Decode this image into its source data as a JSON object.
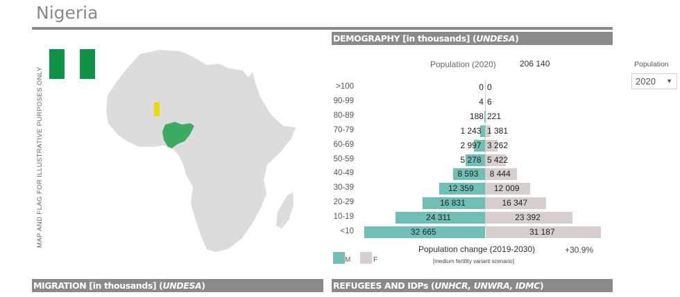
{
  "header": {
    "title": "Nigeria"
  },
  "map_panel": {
    "disclaimer": "MAP AND FLAG FOR ILLUSTRATIVE PURPOSES ONLY",
    "flag_colors": [
      "#0e9446",
      "#ffffff",
      "#0e9446"
    ],
    "map_land_color": "#dcdcdc",
    "highlight_color": "#3bab62",
    "marker_color": "#e3de00"
  },
  "sections": {
    "demography": {
      "prefix": "DEMOGRAPHY [in thousands] (",
      "source": "UNDESA",
      "suffix": ")"
    },
    "migration": {
      "prefix": "MIGRATION [in thousands] (",
      "source": "UNDESA",
      "suffix": ")"
    },
    "refugees": {
      "prefix": "REFUGEES AND IDPs (",
      "source": "UNHCR, UNWRA, IDMC",
      "suffix": ")"
    }
  },
  "population": {
    "label": "Population (2020)",
    "value": "206 140"
  },
  "selector": {
    "label": "Population",
    "value": "2020"
  },
  "legend": {
    "m": "M",
    "f": "F",
    "m_color": "#6fbfb7",
    "f_color": "#d6cfcd"
  },
  "change": {
    "label": "Population change (2019-2030)",
    "sub": "[medium fertility variant scenario]",
    "value": "+30.9%"
  },
  "chart_data": {
    "type": "bar",
    "orientation": "horizontal-population-pyramid",
    "title": "Population (2020)",
    "unit": "thousands",
    "categories": [
      ">100",
      "90-99",
      "80-89",
      "70-79",
      "60-69",
      "50-59",
      "40-49",
      "30-39",
      "20-29",
      "10-19",
      "<10"
    ],
    "series": [
      {
        "name": "M",
        "values": [
          0,
          4,
          188,
          1243,
          2997,
          5278,
          8593,
          12359,
          16831,
          24311,
          32665
        ],
        "labels": [
          "0",
          "4",
          "188",
          "1 243",
          "2 997",
          "5 278",
          "8 593",
          "12 359",
          "16 831",
          "24 311",
          "32 665"
        ]
      },
      {
        "name": "F",
        "values": [
          0,
          6,
          221,
          1381,
          3262,
          5422,
          8444,
          12009,
          16347,
          23392,
          31187
        ],
        "labels": [
          "0",
          "6",
          "221",
          "1 381",
          "3 262",
          "5 422",
          "8 444",
          "12 009",
          "16 347",
          "23 392",
          "31 187"
        ]
      }
    ]
  }
}
